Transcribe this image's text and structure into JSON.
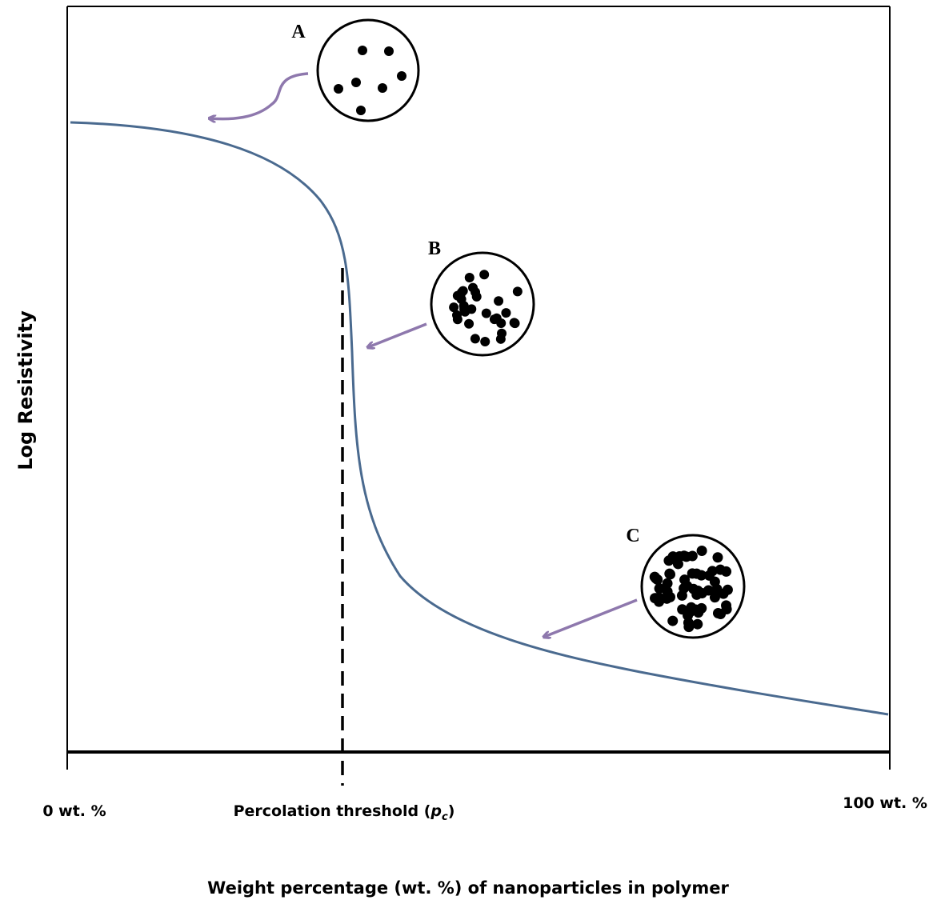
{
  "y_axis": {
    "title": "Log Resistivity"
  },
  "x_axis": {
    "title": "Weight percentage (wt. %) of nanoparticles in polymer",
    "start_label": "0 wt. %",
    "threshold_label": {
      "text": "Percolation threshold (",
      "symbol": "p",
      "subscript": "c",
      "close": ")"
    },
    "end_label": "100 wt. %"
  },
  "insets": [
    {
      "label": "A"
    },
    {
      "label": "B"
    },
    {
      "label": "C"
    }
  ]
}
